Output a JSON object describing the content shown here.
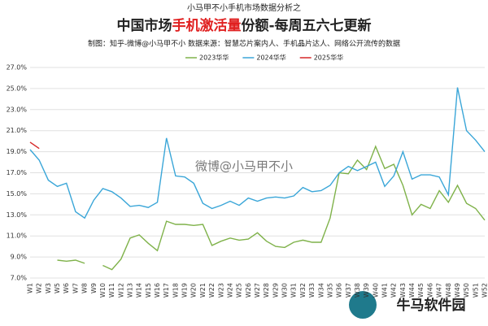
{
  "chart_data": {
    "type": "line",
    "supertitle": "小马甲不小手机市场数据分析之",
    "title_parts": [
      "中国市场",
      "手机激活量",
      "份额-每周五六七更新"
    ],
    "subtitle": "制图：知乎-微博@小马甲不小  数据来源：智慧芯片案内人、手机晶片达人、网络公开流传的数据",
    "watermark": "微博@小马甲不小",
    "logo": "牛马软件园",
    "categories": [
      "W1",
      "W2",
      "W3",
      "W5",
      "W6",
      "W7",
      "W8",
      "W9",
      "W10",
      "W11",
      "W12",
      "W13",
      "W14",
      "W15",
      "W16",
      "W17",
      "W18",
      "W19",
      "W20",
      "W21",
      "W22",
      "W23",
      "W24",
      "W25",
      "W26",
      "W27",
      "W28",
      "W29",
      "W30",
      "W31",
      "W32",
      "W33",
      "W34",
      "W35",
      "W36",
      "W37",
      "W38",
      "W39",
      "W40",
      "W41",
      "W42",
      "W43",
      "W44",
      "W45",
      "W46",
      "W47",
      "W48",
      "W49",
      "W50",
      "W51",
      "W52"
    ],
    "series": [
      {
        "name": "2023华华",
        "color": "#7fb24a",
        "values": [
          null,
          null,
          null,
          8.7,
          8.6,
          8.7,
          8.4,
          null,
          8.2,
          7.8,
          8.8,
          10.8,
          11.1,
          10.3,
          9.6,
          12.4,
          12.1,
          12.1,
          12.0,
          12.1,
          10.1,
          10.5,
          10.8,
          10.6,
          10.7,
          11.3,
          10.5,
          10.0,
          9.9,
          10.4,
          10.6,
          10.4,
          10.4,
          12.7,
          17.0,
          16.9,
          18.2,
          17.3,
          19.5,
          17.4,
          17.8,
          15.8,
          13.0,
          14.0,
          13.6,
          15.3,
          14.2,
          15.8,
          14.1,
          13.6,
          12.5
        ]
      },
      {
        "name": "2024华华",
        "color": "#3aa6d8",
        "values": [
          19.2,
          18.2,
          16.3,
          15.7,
          16.0,
          13.3,
          12.7,
          14.4,
          15.5,
          15.2,
          14.6,
          13.8,
          13.9,
          13.7,
          14.2,
          20.3,
          16.7,
          16.6,
          16.0,
          14.1,
          13.6,
          13.9,
          14.3,
          13.9,
          14.6,
          14.3,
          14.6,
          14.7,
          14.6,
          14.8,
          15.6,
          15.2,
          15.3,
          15.8,
          17.0,
          17.6,
          17.2,
          17.6,
          18.0,
          15.7,
          16.7,
          19.0,
          16.4,
          16.8,
          16.8,
          16.6,
          14.9,
          25.1,
          21.0,
          20.1,
          19.0
        ]
      },
      {
        "name": "2025华华",
        "color": "#d62728",
        "values": [
          19.9,
          19.3,
          null,
          null,
          null,
          null,
          null,
          null,
          null,
          null,
          null,
          null,
          null,
          null,
          null,
          null,
          null,
          null,
          null,
          null,
          null,
          null,
          null,
          null,
          null,
          null,
          null,
          null,
          null,
          null,
          null,
          null,
          null,
          null,
          null,
          null,
          null,
          null,
          null,
          null,
          null,
          null,
          null,
          null,
          null,
          null,
          null,
          null,
          null,
          null,
          null
        ]
      }
    ],
    "ylim": [
      7,
      27
    ],
    "yticks": [
      {
        "value": 7,
        "label": "7.0%"
      },
      {
        "value": 9,
        "label": "9.0%"
      },
      {
        "value": 11,
        "label": "11.0%"
      },
      {
        "value": 13,
        "label": "13.0%"
      },
      {
        "value": 15,
        "label": "15.0%"
      },
      {
        "value": 17,
        "label": "17.0%"
      },
      {
        "value": 19,
        "label": "19.0%"
      },
      {
        "value": 21,
        "label": "21.0%"
      },
      {
        "value": 23,
        "label": "23.0%"
      },
      {
        "value": 25,
        "label": "25.0%"
      },
      {
        "value": 27,
        "label": "27.0%"
      }
    ],
    "grid": true
  }
}
